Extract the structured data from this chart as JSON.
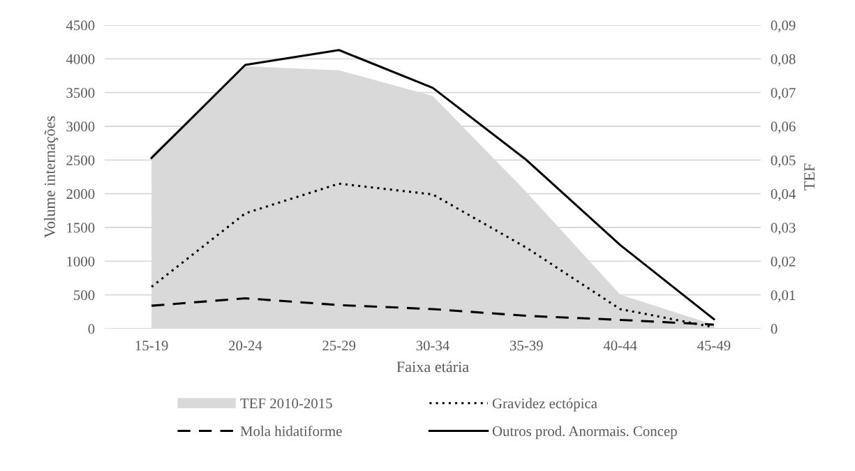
{
  "chart_data": {
    "type": "line",
    "xlabel": "Faixa etária",
    "ylabel": "Volume internações",
    "y2label": "TEF",
    "categories": [
      "15-19",
      "20-24",
      "25-29",
      "30-34",
      "35-39",
      "40-44",
      "45-49"
    ],
    "series": [
      {
        "name": "TEF 2010-2015",
        "type": "area",
        "axis": "y2",
        "color": "#d9d9d9",
        "values": [
          0.0516,
          0.0778,
          0.0766,
          0.069,
          0.0405,
          0.0101,
          0.0012
        ]
      },
      {
        "name": "Gravidez ectópica",
        "line_style": "dotted",
        "color": "#000000",
        "values": [
          620,
          1710,
          2150,
          1990,
          1200,
          290,
          20
        ]
      },
      {
        "name": "Mola hidatiforme",
        "line_style": "dashed",
        "color": "#000000",
        "values": [
          340,
          450,
          350,
          290,
          190,
          130,
          60
        ]
      },
      {
        "name": "Outros prod. Anormais. Concep",
        "line_style": "solid",
        "color": "#000000",
        "values": [
          2530,
          3910,
          4130,
          3570,
          2500,
          1240,
          140
        ]
      }
    ],
    "ylim": [
      0,
      4500
    ],
    "yticks": [
      0,
      500,
      1000,
      1500,
      2000,
      2500,
      3000,
      3500,
      4000,
      4500
    ],
    "y2lim": [
      0,
      0.09
    ],
    "y2ticks": [
      {
        "value": 0,
        "label": "0"
      },
      {
        "value": 0.01,
        "label": "0,01"
      },
      {
        "value": 0.02,
        "label": "0,02"
      },
      {
        "value": 0.03,
        "label": "0,03"
      },
      {
        "value": 0.04,
        "label": "0,04"
      },
      {
        "value": 0.05,
        "label": "0,05"
      },
      {
        "value": 0.06,
        "label": "0,06"
      },
      {
        "value": 0.07,
        "label": "0,07"
      },
      {
        "value": 0.08,
        "label": "0,08"
      },
      {
        "value": 0.09,
        "label": "0,09"
      }
    ],
    "grid": "y",
    "legend": "bottom",
    "marker": "none"
  }
}
